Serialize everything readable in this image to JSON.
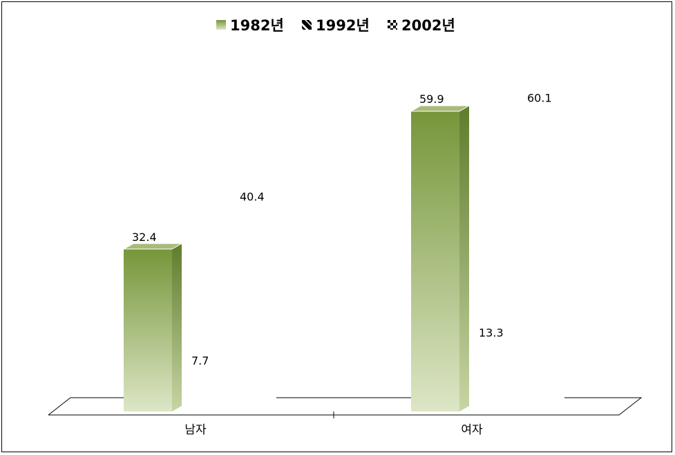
{
  "chart_data": {
    "type": "bar",
    "categories": [
      "남자",
      "여자"
    ],
    "series": [
      {
        "name": "1982년",
        "values": [
          32.4,
          59.9
        ]
      },
      {
        "name": "1992년",
        "values": [
          7.7,
          13.3
        ]
      },
      {
        "name": "2002년",
        "values": [
          40.4,
          60.1
        ]
      }
    ],
    "title": "",
    "xlabel": "",
    "ylabel": "",
    "ylim": [
      0,
      70
    ],
    "grid": false,
    "legend_position": "top-center"
  },
  "colors": {
    "bar_top": "#76963a",
    "bar_bottom": "#dde6c6"
  }
}
